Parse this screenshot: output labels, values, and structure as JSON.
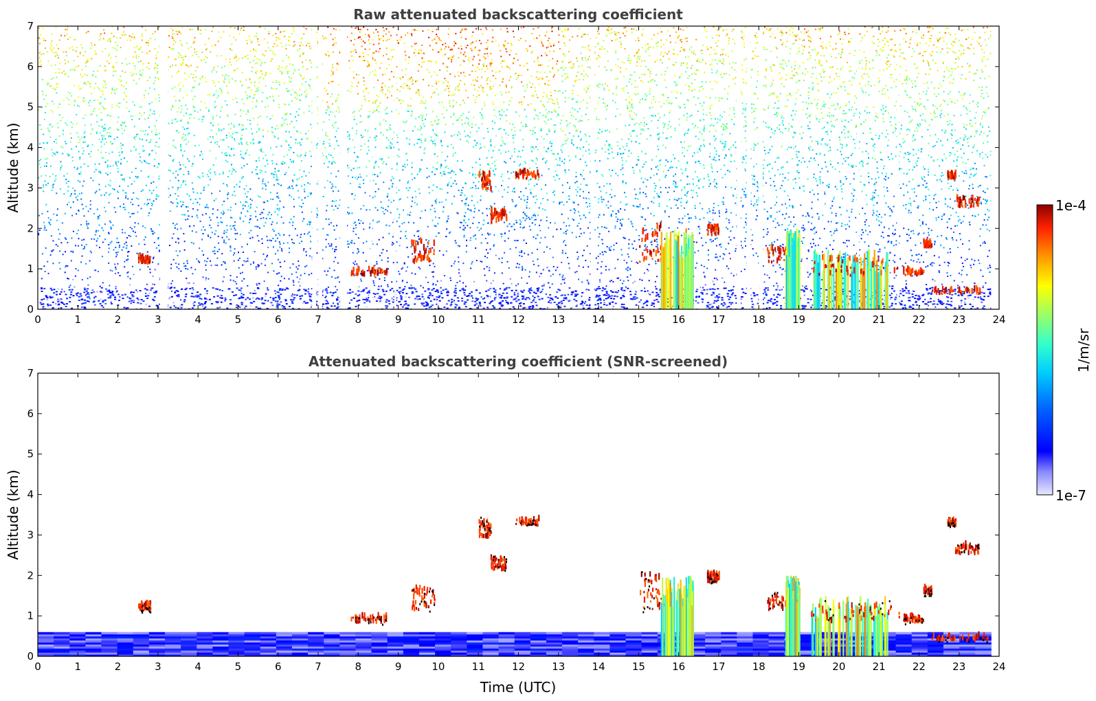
{
  "chart_data": [
    {
      "type": "heatmap",
      "title": "Raw attenuated backscattering coefficient",
      "xlabel": "",
      "ylabel": "Altitude (km)",
      "xlim": [
        0,
        24
      ],
      "ylim": [
        0,
        7
      ],
      "xticks": [
        "0",
        "1",
        "2",
        "3",
        "4",
        "5",
        "6",
        "7",
        "8",
        "9",
        "10",
        "11",
        "12",
        "13",
        "14",
        "15",
        "16",
        "17",
        "18",
        "19",
        "20",
        "21",
        "22",
        "23",
        "24"
      ],
      "yticks": [
        "0",
        "1",
        "2",
        "3",
        "4",
        "5",
        "6",
        "7"
      ],
      "gaps": [
        [
          3.05,
          3.25
        ],
        [
          6.85,
          6.95
        ],
        [
          7.0,
          7.1
        ],
        [
          7.55,
          7.72
        ],
        [
          8.3,
          8.35
        ],
        [
          8.9,
          8.95
        ],
        [
          11.45,
          11.5
        ],
        [
          13.8,
          13.9
        ],
        [
          17.45,
          17.55
        ],
        [
          17.7,
          17.8
        ],
        [
          18.0,
          18.1
        ],
        [
          20.45,
          20.5
        ],
        [
          21.45,
          21.5
        ]
      ],
      "cloud_features": [
        {
          "t0": 2.5,
          "t1": 2.8,
          "alt0": 1.1,
          "alt1": 1.3,
          "kind": "thick"
        },
        {
          "t0": 11.0,
          "t1": 11.3,
          "alt0": 2.9,
          "alt1": 3.5,
          "kind": "thick"
        },
        {
          "t0": 11.3,
          "t1": 11.7,
          "alt0": 2.1,
          "alt1": 2.5,
          "kind": "thick"
        },
        {
          "t0": 11.9,
          "t1": 12.5,
          "alt0": 3.2,
          "alt1": 3.4,
          "kind": "thick"
        },
        {
          "t0": 9.3,
          "t1": 9.9,
          "alt0": 1.1,
          "alt1": 1.9,
          "kind": "thick"
        },
        {
          "t0": 7.8,
          "t1": 8.7,
          "alt0": 0.8,
          "alt1": 1.0,
          "kind": "thick"
        },
        {
          "t0": 15.0,
          "t1": 15.6,
          "alt0": 1.1,
          "alt1": 2.4,
          "kind": "thick"
        },
        {
          "t0": 15.55,
          "t1": 16.35,
          "alt0": 0.0,
          "alt1": 2.0,
          "kind": "precip"
        },
        {
          "t0": 16.7,
          "t1": 17.0,
          "alt0": 1.8,
          "alt1": 2.1,
          "kind": "thick"
        },
        {
          "t0": 18.2,
          "t1": 18.9,
          "alt0": 1.1,
          "alt1": 1.6,
          "kind": "thick"
        },
        {
          "t0": 18.65,
          "t1": 19.0,
          "alt0": 0.0,
          "alt1": 2.0,
          "kind": "precip"
        },
        {
          "t0": 19.3,
          "t1": 21.2,
          "alt0": 0.0,
          "alt1": 1.5,
          "kind": "precip"
        },
        {
          "t0": 19.3,
          "t1": 21.5,
          "alt0": 0.8,
          "alt1": 1.4,
          "kind": "thick"
        },
        {
          "t0": 21.6,
          "t1": 22.1,
          "alt0": 0.8,
          "alt1": 1.0,
          "kind": "thick"
        },
        {
          "t0": 22.1,
          "t1": 22.3,
          "alt0": 1.5,
          "alt1": 1.7,
          "kind": "thick"
        },
        {
          "t0": 22.7,
          "t1": 22.9,
          "alt0": 3.2,
          "alt1": 3.35,
          "kind": "thick"
        },
        {
          "t0": 22.9,
          "t1": 23.5,
          "alt0": 2.5,
          "alt1": 2.8,
          "kind": "thick"
        },
        {
          "t0": 22.3,
          "t1": 23.7,
          "alt0": 0.35,
          "alt1": 0.5,
          "kind": "thick"
        }
      ]
    },
    {
      "type": "heatmap",
      "title": "Attenuated backscattering coefficient (SNR-screened)",
      "xlabel": "Time (UTC)",
      "ylabel": "Altitude (km)",
      "xlim": [
        0,
        24
      ],
      "ylim": [
        0,
        7
      ],
      "xticks": [
        "0",
        "1",
        "2",
        "3",
        "4",
        "5",
        "6",
        "7",
        "8",
        "9",
        "10",
        "11",
        "12",
        "13",
        "14",
        "15",
        "16",
        "17",
        "18",
        "19",
        "20",
        "21",
        "22",
        "23",
        "24"
      ],
      "yticks": [
        "0",
        "1",
        "2",
        "3",
        "4",
        "5",
        "6",
        "7"
      ],
      "boundary_layer_top_km": 0.6,
      "cloud_features": [
        {
          "t0": 2.5,
          "t1": 2.8,
          "alt0": 1.1,
          "alt1": 1.3,
          "kind": "thick"
        },
        {
          "t0": 11.0,
          "t1": 11.3,
          "alt0": 2.9,
          "alt1": 3.5,
          "kind": "thick"
        },
        {
          "t0": 11.3,
          "t1": 11.7,
          "alt0": 2.1,
          "alt1": 2.5,
          "kind": "thick"
        },
        {
          "t0": 11.9,
          "t1": 12.5,
          "alt0": 3.2,
          "alt1": 3.4,
          "kind": "thick"
        },
        {
          "t0": 9.3,
          "t1": 9.9,
          "alt0": 1.1,
          "alt1": 1.9,
          "kind": "thick"
        },
        {
          "t0": 7.8,
          "t1": 8.7,
          "alt0": 0.8,
          "alt1": 1.0,
          "kind": "thick"
        },
        {
          "t0": 15.0,
          "t1": 15.6,
          "alt0": 1.1,
          "alt1": 2.4,
          "kind": "thick"
        },
        {
          "t0": 15.55,
          "t1": 16.35,
          "alt0": 0.0,
          "alt1": 2.0,
          "kind": "precip"
        },
        {
          "t0": 16.7,
          "t1": 17.0,
          "alt0": 1.8,
          "alt1": 2.1,
          "kind": "thick"
        },
        {
          "t0": 18.2,
          "t1": 18.9,
          "alt0": 1.1,
          "alt1": 1.6,
          "kind": "thick"
        },
        {
          "t0": 18.65,
          "t1": 19.0,
          "alt0": 0.0,
          "alt1": 2.0,
          "kind": "precip"
        },
        {
          "t0": 19.3,
          "t1": 21.2,
          "alt0": 0.0,
          "alt1": 1.5,
          "kind": "precip"
        },
        {
          "t0": 19.3,
          "t1": 21.5,
          "alt0": 0.8,
          "alt1": 1.4,
          "kind": "thick"
        },
        {
          "t0": 21.6,
          "t1": 22.1,
          "alt0": 0.8,
          "alt1": 1.0,
          "kind": "thick"
        },
        {
          "t0": 22.1,
          "t1": 22.3,
          "alt0": 1.5,
          "alt1": 1.7,
          "kind": "thick"
        },
        {
          "t0": 22.7,
          "t1": 22.9,
          "alt0": 3.2,
          "alt1": 3.35,
          "kind": "thick"
        },
        {
          "t0": 22.9,
          "t1": 23.5,
          "alt0": 2.5,
          "alt1": 2.8,
          "kind": "thick"
        },
        {
          "t0": 22.3,
          "t1": 23.7,
          "alt0": 0.35,
          "alt1": 0.5,
          "kind": "thick"
        }
      ]
    }
  ],
  "colorbar": {
    "label": "1/m/sr",
    "min_label": "1e-7",
    "max_label": "1e-4",
    "scale": "log",
    "colormap": "jet"
  }
}
